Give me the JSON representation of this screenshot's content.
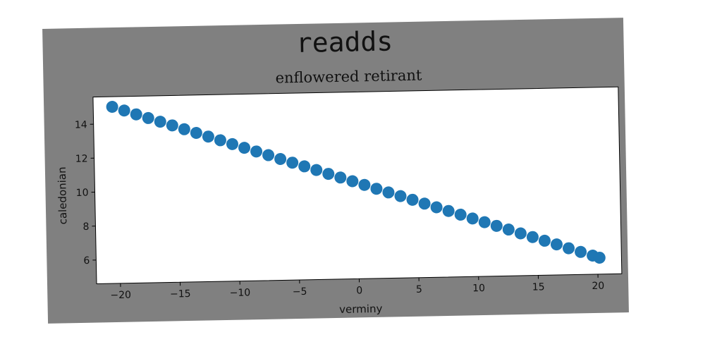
{
  "title": "readds",
  "chart_data": {
    "type": "scatter",
    "subtitle": "enflowered retirant",
    "xlabel": "verminy",
    "ylabel": "caledonian",
    "xlim": [
      -22,
      22
    ],
    "ylim": [
      4.6,
      15.6
    ],
    "xticks": [
      -20,
      -15,
      -10,
      -5,
      0,
      5,
      10,
      15,
      20
    ],
    "xtick_labels": [
      "−20",
      "−15",
      "−10",
      "−5",
      "0",
      "5",
      "10",
      "15",
      "20"
    ],
    "yticks": [
      6,
      8,
      10,
      12,
      14
    ],
    "ytick_labels": [
      "6",
      "8",
      "10",
      "12",
      "14"
    ],
    "grid": false,
    "series": [
      {
        "color": "#1f77b4",
        "x": [
          -20.41,
          -19.41,
          -18.41,
          -17.41,
          -16.41,
          -15.41,
          -14.41,
          -13.41,
          -12.41,
          -11.41,
          -10.41,
          -9.41,
          -8.41,
          -7.41,
          -6.41,
          -5.41,
          -4.41,
          -3.41,
          -2.41,
          -1.41,
          -0.41,
          0.59,
          1.59,
          2.59,
          3.59,
          4.59,
          5.59,
          6.59,
          7.59,
          8.59,
          9.59,
          10.59,
          11.59,
          12.59,
          13.59,
          14.59,
          15.59,
          16.59,
          17.59,
          18.59,
          19.59,
          20.16
        ],
        "y": [
          15.0,
          14.77,
          14.53,
          14.3,
          14.07,
          13.84,
          13.6,
          13.37,
          13.14,
          12.91,
          12.67,
          12.44,
          12.21,
          11.98,
          11.74,
          11.51,
          11.28,
          11.05,
          10.81,
          10.58,
          10.35,
          10.12,
          9.88,
          9.65,
          9.42,
          9.19,
          8.95,
          8.72,
          8.49,
          8.26,
          8.02,
          7.79,
          7.56,
          7.33,
          7.09,
          6.86,
          6.63,
          6.4,
          6.16,
          5.93,
          5.7,
          5.57
        ]
      }
    ]
  }
}
